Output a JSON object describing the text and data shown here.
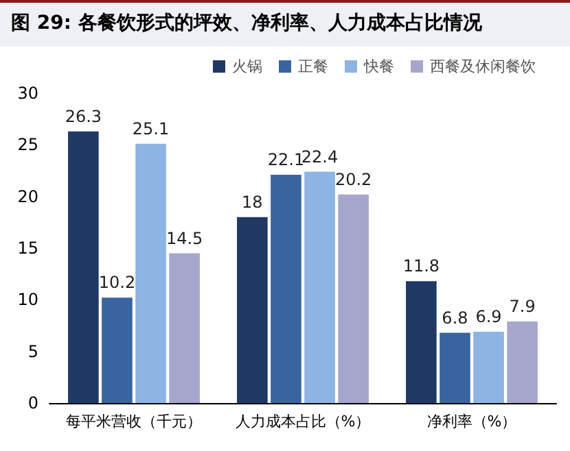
{
  "chart_data": {
    "type": "bar",
    "title": "图 29: 各餐饮形式的坪效、净利率、人力成本占比情况",
    "categories": [
      "每平米营收（千元）",
      "人力成本占比（%）",
      "净利率（%）"
    ],
    "series": [
      {
        "name": "火锅",
        "color": "#1f3864",
        "values": [
          26.3,
          18,
          11.8
        ]
      },
      {
        "name": "正餐",
        "color": "#3a64a0",
        "values": [
          10.2,
          22.1,
          6.8
        ]
      },
      {
        "name": "快餐",
        "color": "#8db4e2",
        "values": [
          25.1,
          22.4,
          6.9
        ]
      },
      {
        "name": "西餐及休闲餐饮",
        "color": "#a6a6cc",
        "values": [
          14.5,
          20.2,
          7.9
        ]
      }
    ],
    "ylim": [
      0,
      30
    ],
    "yticks": [
      0,
      5,
      10,
      15,
      20,
      25,
      30
    ],
    "data_labels": true,
    "legend": "top",
    "grid": false
  }
}
